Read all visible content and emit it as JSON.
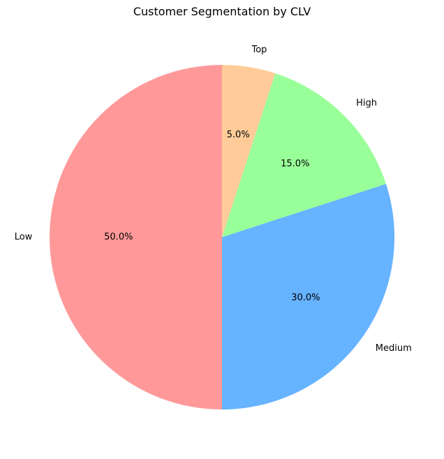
{
  "chart_data": {
    "type": "pie",
    "title": "Customer Segmentation by CLV",
    "categories": [
      "Low",
      "Medium",
      "High",
      "Top"
    ],
    "values": [
      50.0,
      30.0,
      15.0,
      5.0
    ],
    "percent_labels": [
      "50.0%",
      "30.0%",
      "15.0%",
      "5.0%"
    ],
    "colors": [
      "#ff9999",
      "#66b3ff",
      "#99ff99",
      "#ffcc99"
    ],
    "start_angle_deg": 90,
    "direction": "counterclockwise",
    "legend": "none"
  }
}
